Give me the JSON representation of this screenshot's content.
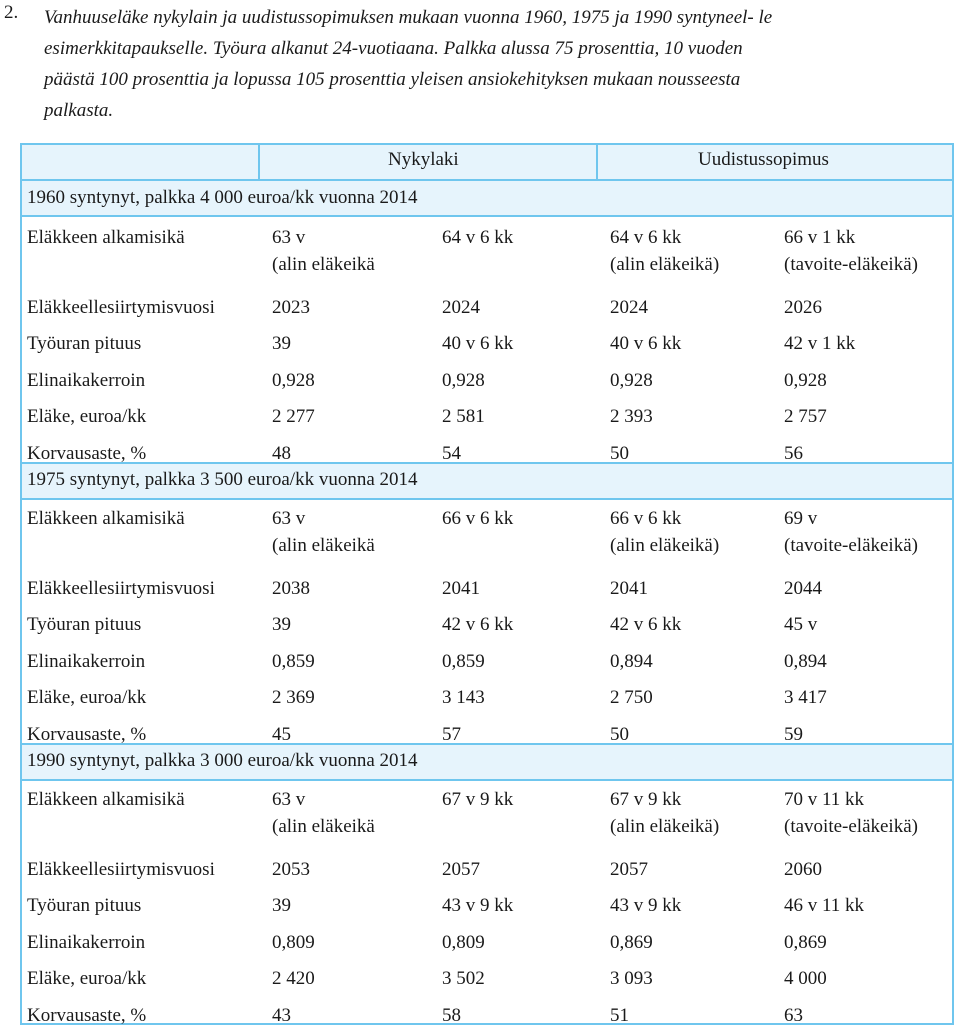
{
  "caption": {
    "number": "2.",
    "lines": [
      "Vanhuuseläke nykylain ja uudistussopimuksen mukaan vuonna 1960, 1975 ja 1990 syntyneel- le",
      "esimerkkitapaukselle. Työura alkanut 24-vuotiaana. Palkka alussa 75 prosenttia, 10 vuoden",
      "päästä 100 prosenttia ja lopussa 105 prosenttia yleisen ansiokehityksen mukaan nousseesta",
      "palkasta."
    ]
  },
  "table": {
    "headers": {
      "nykylaki": "Nykylaki",
      "uudistussopimus": "Uudistussopimus"
    },
    "sections": [
      {
        "title": "1960 syntynyt, palkka 4 000 euroa/kk vuonna 2014",
        "rows": [
          {
            "label": "Eläkkeen alkamisikä",
            "c1": "63 v",
            "c1b": "(alin eläkeikä",
            "c2": "64 v 6 kk",
            "c2b": "",
            "c3": "64 v 6 kk",
            "c3b": "(alin eläkeikä)",
            "c4": "66 v 1 kk",
            "c4b": "(tavoite-eläkeikä)"
          },
          {
            "label": "Eläkkeellesiirtymisvuosi",
            "c1": "2023",
            "c2": "2024",
            "c3": "2024",
            "c4": "2026"
          },
          {
            "label": "Työuran pituus",
            "c1": "39",
            "c2": "40 v 6 kk",
            "c3": "40 v 6 kk",
            "c4": "42 v 1 kk"
          },
          {
            "label": "Elinaikakerroin",
            "c1": "0,928",
            "c2": "0,928",
            "c3": "0,928",
            "c4": "0,928"
          },
          {
            "label": "Eläke, euroa/kk",
            "c1": "2 277",
            "c2": "2 581",
            "c3": "2 393",
            "c4": "2 757"
          },
          {
            "label": "Korvausaste, %",
            "c1": "48",
            "c2": "54",
            "c3": "50",
            "c4": "56"
          }
        ]
      },
      {
        "title": "1975 syntynyt, palkka 3 500 euroa/kk vuonna 2014",
        "rows": [
          {
            "label": "Eläkkeen alkamisikä",
            "c1": "63 v",
            "c1b": "(alin eläkeikä",
            "c2": "66 v 6 kk",
            "c2b": "",
            "c3": "66 v 6 kk",
            "c3b": "(alin eläkeikä)",
            "c4": "69 v",
            "c4b": "(tavoite-eläkeikä)"
          },
          {
            "label": "Eläkkeellesiirtymisvuosi",
            "c1": "2038",
            "c2": "2041",
            "c3": "2041",
            "c4": "2044"
          },
          {
            "label": "Työuran pituus",
            "c1": "39",
            "c2": "42 v 6 kk",
            "c3": "42 v 6 kk",
            "c4": "45 v"
          },
          {
            "label": "Elinaikakerroin",
            "c1": "0,859",
            "c2": "0,859",
            "c3": "0,894",
            "c4": "0,894"
          },
          {
            "label": "Eläke, euroa/kk",
            "c1": "2 369",
            "c2": "3 143",
            "c3": "2 750",
            "c4": "3 417"
          },
          {
            "label": "Korvausaste, %",
            "c1": "45",
            "c2": "57",
            "c3": "50",
            "c4": "59"
          }
        ]
      },
      {
        "title": "1990 syntynyt, palkka 3 000 euroa/kk vuonna 2014",
        "rows": [
          {
            "label": "Eläkkeen alkamisikä",
            "c1": "63 v",
            "c1b": "(alin eläkeikä",
            "c2": "67 v 9 kk",
            "c2b": "",
            "c3": "67 v 9 kk",
            "c3b": "(alin eläkeikä)",
            "c4": "70 v 11 kk",
            "c4b": "(tavoite-eläkeikä)"
          },
          {
            "label": "Eläkkeellesiirtymisvuosi",
            "c1": "2053",
            "c2": "2057",
            "c3": "2057",
            "c4": "2060"
          },
          {
            "label": "Työuran pituus",
            "c1": "39",
            "c2": "43 v 9 kk",
            "c3": "43 v 9 kk",
            "c4": "46 v 11 kk"
          },
          {
            "label": "Elinaikakerroin",
            "c1": "0,809",
            "c2": "0,809",
            "c3": "0,869",
            "c4": "0,869"
          },
          {
            "label": "Eläke, euroa/kk",
            "c1": "2 420",
            "c2": "3 502",
            "c3": "3 093",
            "c4": "4 000"
          },
          {
            "label": "Korvausaste, %",
            "c1": "43",
            "c2": "58",
            "c3": "51",
            "c4": "63"
          }
        ]
      }
    ]
  },
  "colors": {
    "border": "#6fc6ee",
    "band": "#e6f4fc",
    "text": "#1a1a1a"
  }
}
